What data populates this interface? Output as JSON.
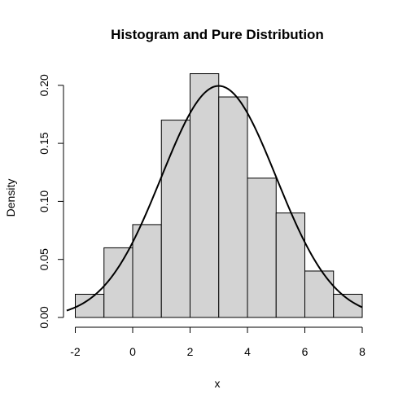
{
  "chart_data": {
    "type": "bar",
    "subtype": "histogram-with-density-curve",
    "title": "Histogram and Pure Distribution",
    "xlabel": "x",
    "ylabel": "Density",
    "xlim": [
      -2.3,
      8.0
    ],
    "ylim": [
      0,
      0.2
    ],
    "x_ticks": [
      -2,
      0,
      2,
      4,
      6,
      8
    ],
    "x_tick_labels": [
      "-2",
      "0",
      "2",
      "4",
      "6",
      "8"
    ],
    "y_ticks": [
      0.0,
      0.05,
      0.1,
      0.15,
      0.2
    ],
    "y_tick_labels": [
      "0.00",
      "0.05",
      "0.10",
      "0.15",
      "0.20"
    ],
    "grid": false,
    "bars": [
      {
        "x0": -2,
        "x1": -1,
        "value": 0.02
      },
      {
        "x0": -1,
        "x1": 0,
        "value": 0.06
      },
      {
        "x0": 0,
        "x1": 1,
        "value": 0.08
      },
      {
        "x0": 1,
        "x1": 2,
        "value": 0.17
      },
      {
        "x0": 2,
        "x1": 3,
        "value": 0.21
      },
      {
        "x0": 3,
        "x1": 4,
        "value": 0.19
      },
      {
        "x0": 4,
        "x1": 5,
        "value": 0.12
      },
      {
        "x0": 5,
        "x1": 6,
        "value": 0.09
      },
      {
        "x0": 6,
        "x1": 7,
        "value": 0.04
      },
      {
        "x0": 7,
        "x1": 8,
        "value": 0.02
      }
    ],
    "curve": {
      "distribution": "normal",
      "mean": 3,
      "sd": 2,
      "x_range": [
        -2.3,
        8.0
      ]
    },
    "colors": {
      "bar_fill": "#d3d3d3",
      "bar_stroke": "#000000",
      "curve": "#000000",
      "axis": "#000000",
      "background": "#ffffff"
    }
  }
}
